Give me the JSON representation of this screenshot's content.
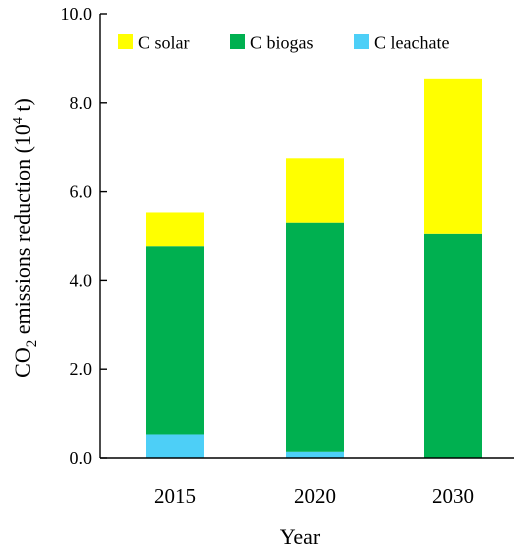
{
  "chart_data": {
    "type": "bar",
    "stacked": true,
    "categories": [
      "2015",
      "2020",
      "2030"
    ],
    "series": [
      {
        "name": "C leachate",
        "color": "#4DCFF7",
        "values": [
          0.53,
          0.14,
          0.0
        ]
      },
      {
        "name": "C biogas",
        "color": "#00B050",
        "values": [
          4.24,
          5.16,
          5.05
        ]
      },
      {
        "name": "C solar",
        "color": "#FFFF00",
        "values": [
          0.76,
          1.45,
          3.49
        ]
      }
    ],
    "legend_order": [
      "C solar",
      "C biogas",
      "C leachate"
    ],
    "legend_position": "top",
    "ylim": [
      0,
      10
    ],
    "y_ticks": [
      "0.0",
      "2.0",
      "4.0",
      "6.0",
      "8.0",
      "10.0"
    ],
    "y_tick_values": [
      0,
      2,
      4,
      6,
      8,
      10
    ],
    "xlabel": "Year",
    "ylabel": {
      "prefix": "CO",
      "sub": "2",
      "middle": " emissions reduction (10",
      "sup": "4",
      "suffix": " t)"
    },
    "grid": false
  }
}
